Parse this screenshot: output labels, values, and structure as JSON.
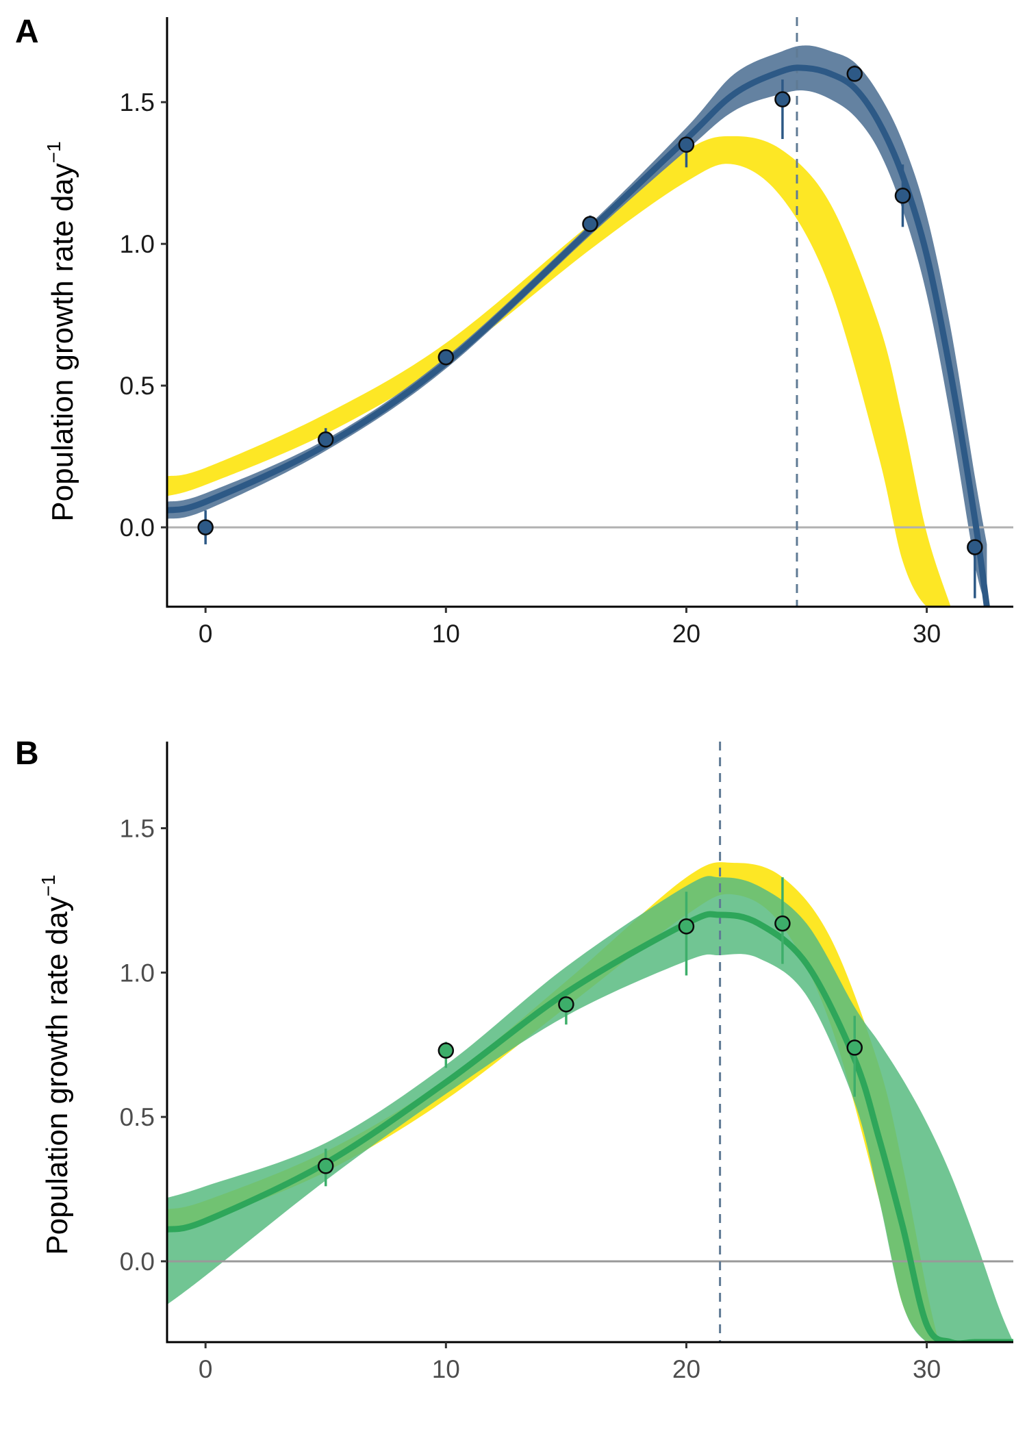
{
  "figure": {
    "panels": [
      {
        "label": "A",
        "ylabel": "Population growth rate day",
        "ylabel_superscript": "−1",
        "y_tick_labels": [
          "0.0",
          "0.5",
          "1.0",
          "1.5"
        ],
        "x_tick_labels": [
          "0",
          "10",
          "20",
          "30"
        ]
      },
      {
        "label": "B",
        "ylabel": "Population growth rate day",
        "ylabel_superscript": "−1",
        "y_tick_labels": [
          "0.0",
          "0.5",
          "1.0",
          "1.5"
        ],
        "x_tick_labels": [
          "0",
          "10",
          "20",
          "30"
        ]
      }
    ]
  },
  "chart_data": [
    {
      "type": "line",
      "panel": "A",
      "title": "",
      "xlabel": "",
      "ylabel": "Population growth rate day⁻¹",
      "xlim": [
        -1.6,
        33.6
      ],
      "ylim": [
        -0.28,
        1.8
      ],
      "x_ticks": [
        0,
        10,
        20,
        30
      ],
      "y_ticks": [
        0.0,
        0.5,
        1.0,
        1.5
      ],
      "hline": 0.0,
      "vline": 24.6,
      "grid": false,
      "legend": "none",
      "colors": {
        "reference_band": "#FDE725",
        "series_line": "#2D5986",
        "series_band": "#5C7B9C",
        "points": "#2D5986",
        "hline": "#B0B0B0",
        "vline": "#5F7A94"
      },
      "reference_band": {
        "x": [
          -1.6,
          0,
          5,
          10,
          16,
          20,
          22,
          24,
          26,
          28,
          29,
          30,
          31
        ],
        "lower": [
          0.11,
          0.15,
          0.33,
          0.58,
          0.98,
          1.22,
          1.28,
          1.16,
          0.84,
          0.25,
          -0.12,
          -0.28,
          -0.28
        ],
        "upper": [
          0.18,
          0.21,
          0.4,
          0.65,
          1.07,
          1.33,
          1.38,
          1.33,
          1.14,
          0.72,
          0.38,
          -0.02,
          -0.28
        ]
      },
      "series": [
        {
          "name": "",
          "fit": {
            "x": [
              -1.6,
              0,
              5,
              10,
              16,
              20,
              22,
              24,
              25,
              26,
              27,
              28,
              29,
              30,
              31,
              32,
              32.5
            ],
            "y": [
              0.06,
              0.09,
              0.29,
              0.58,
              1.05,
              1.37,
              1.53,
              1.61,
              1.62,
              1.6,
              1.55,
              1.43,
              1.24,
              0.96,
              0.54,
              0.03,
              -0.28
            ],
            "lower": [
              0.03,
              0.06,
              0.27,
              0.56,
              1.03,
              1.33,
              1.47,
              1.53,
              1.54,
              1.51,
              1.45,
              1.33,
              1.12,
              0.82,
              0.38,
              -0.13,
              -0.28
            ],
            "upper": [
              0.09,
              0.12,
              0.31,
              0.6,
              1.07,
              1.41,
              1.6,
              1.68,
              1.7,
              1.68,
              1.64,
              1.53,
              1.36,
              1.1,
              0.7,
              0.18,
              -0.06
            ]
          },
          "points": [
            {
              "x": 0,
              "y": 0.0,
              "ymin": -0.06,
              "ymax": 0.06
            },
            {
              "x": 5,
              "y": 0.31,
              "ymin": 0.29,
              "ymax": 0.35
            },
            {
              "x": 10,
              "y": 0.6,
              "ymin": 0.59,
              "ymax": 0.61
            },
            {
              "x": 16,
              "y": 1.07,
              "ymin": 1.05,
              "ymax": 1.1
            },
            {
              "x": 20,
              "y": 1.35,
              "ymin": 1.27,
              "ymax": 1.36
            },
            {
              "x": 24,
              "y": 1.51,
              "ymin": 1.37,
              "ymax": 1.58
            },
            {
              "x": 27,
              "y": 1.6,
              "ymin": 1.58,
              "ymax": 1.63
            },
            {
              "x": 29,
              "y": 1.17,
              "ymin": 1.06,
              "ymax": 1.28
            },
            {
              "x": 32,
              "y": -0.07,
              "ymin": -0.25,
              "ymax": -0.05
            }
          ]
        }
      ]
    },
    {
      "type": "line",
      "panel": "B",
      "title": "",
      "xlabel": "",
      "ylabel": "Population growth rate day⁻¹",
      "xlim": [
        -1.6,
        33.6
      ],
      "ylim": [
        -0.28,
        1.8
      ],
      "x_ticks": [
        0,
        10,
        20,
        30
      ],
      "y_ticks": [
        0.0,
        0.5,
        1.0,
        1.5
      ],
      "hline": 0.0,
      "vline": 21.4,
      "grid": false,
      "legend": "none",
      "colors": {
        "reference_band": "#FDE725",
        "series_line": "#2EA65A",
        "series_band": "#58BB80",
        "points": "#3DAE6A",
        "hline": "#999999",
        "vline": "#5F7A94"
      },
      "reference_band": {
        "x": [
          -1.6,
          0,
          5,
          10,
          15,
          20,
          22,
          24,
          26,
          28,
          29,
          30,
          30.5
        ],
        "lower": [
          0.1,
          0.14,
          0.31,
          0.56,
          0.88,
          1.2,
          1.27,
          1.16,
          0.82,
          0.22,
          -0.15,
          -0.28,
          -0.28
        ],
        "upper": [
          0.18,
          0.21,
          0.38,
          0.63,
          0.97,
          1.33,
          1.38,
          1.33,
          1.12,
          0.68,
          0.33,
          -0.1,
          -0.28
        ]
      },
      "series": [
        {
          "name": "",
          "fit": {
            "x": [
              -1.6,
              0,
              5,
              10,
              15,
              20,
              21.4,
              23,
              25,
              27,
              28,
              29,
              30,
              31,
              32,
              33,
              33.6
            ],
            "y": [
              0.11,
              0.14,
              0.34,
              0.62,
              0.93,
              1.17,
              1.2,
              1.17,
              1.03,
              0.7,
              0.43,
              0.12,
              -0.22,
              -0.28,
              -0.28,
              -0.28,
              -0.28
            ],
            "lower": [
              -0.15,
              -0.05,
              0.28,
              0.58,
              0.85,
              1.04,
              1.06,
              1.05,
              0.92,
              0.55,
              0.22,
              -0.15,
              -0.28,
              -0.28,
              -0.28,
              -0.28,
              -0.28
            ],
            "upper": [
              0.22,
              0.26,
              0.41,
              0.68,
              1.02,
              1.3,
              1.33,
              1.3,
              1.17,
              0.88,
              0.76,
              0.63,
              0.48,
              0.3,
              0.08,
              -0.16,
              -0.28
            ]
          },
          "points": [
            {
              "x": 5,
              "y": 0.33,
              "ymin": 0.26,
              "ymax": 0.39
            },
            {
              "x": 10,
              "y": 0.73,
              "ymin": 0.67,
              "ymax": 0.76
            },
            {
              "x": 15,
              "y": 0.89,
              "ymin": 0.82,
              "ymax": 0.91
            },
            {
              "x": 20,
              "y": 1.16,
              "ymin": 0.99,
              "ymax": 1.28
            },
            {
              "x": 24,
              "y": 1.17,
              "ymin": 1.03,
              "ymax": 1.33
            },
            {
              "x": 27,
              "y": 0.74,
              "ymin": 0.57,
              "ymax": 0.85
            }
          ]
        }
      ]
    }
  ]
}
